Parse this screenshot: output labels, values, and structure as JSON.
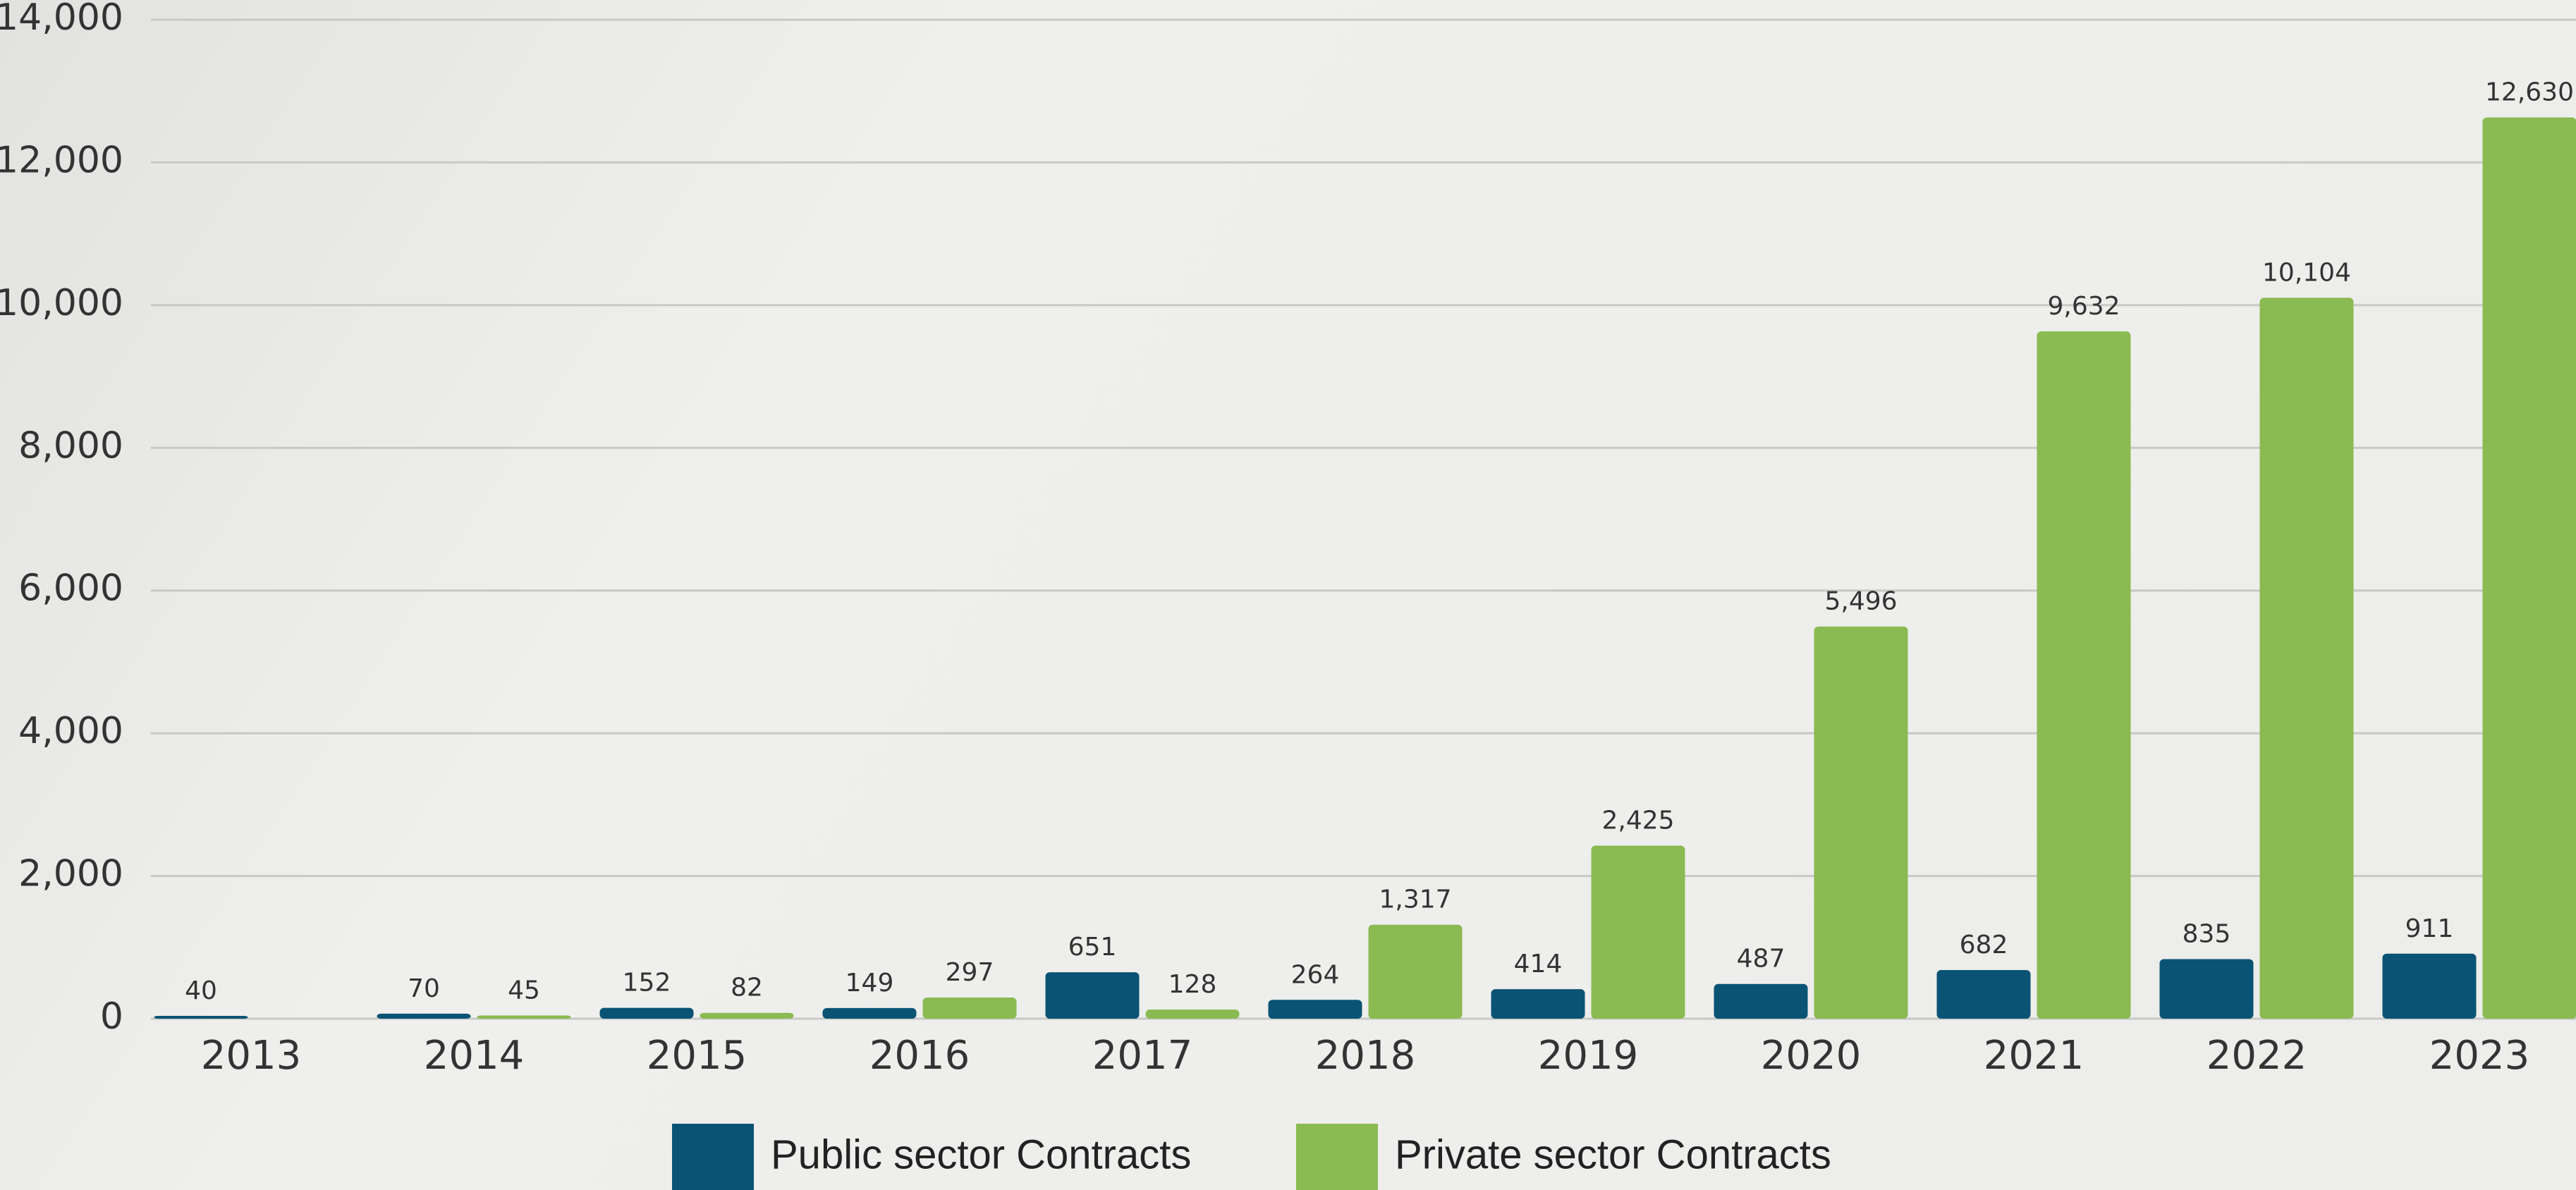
{
  "chart_data": {
    "type": "bar",
    "categories": [
      "2013",
      "2014",
      "2015",
      "2016",
      "2017",
      "2018",
      "2019",
      "2020",
      "2021",
      "2022",
      "2023"
    ],
    "series": [
      {
        "name": "Public sector Contracts",
        "color": "#0b5374",
        "values": [
          40,
          70,
          152,
          149,
          651,
          264,
          414,
          487,
          682,
          835,
          911
        ],
        "value_labels": [
          "40",
          "70",
          "152",
          "149",
          "651",
          "264",
          "414",
          "487",
          "682",
          "835",
          "911"
        ]
      },
      {
        "name": "Private sector Contracts",
        "color": "#8aba52",
        "values": [
          null,
          45,
          82,
          297,
          128,
          1317,
          2425,
          5496,
          9632,
          10104,
          12630
        ],
        "value_labels": [
          null,
          "45",
          "82",
          "297",
          "128",
          "1,317",
          "2,425",
          "5,496",
          "9,632",
          "10,104",
          "12,630"
        ]
      }
    ],
    "ylim": [
      0,
      14000
    ],
    "yticks": [
      0,
      {
        "value": 2000,
        "label": "2,000"
      },
      {
        "value": 4000,
        "label": "4,000"
      },
      {
        "value": 6000,
        "label": "6,000"
      },
      {
        "value": 8000,
        "label": "8,000"
      },
      {
        "value": 10000,
        "label": "10,000"
      },
      {
        "value": 12000,
        "label": "12,000"
      },
      {
        "value": 14000,
        "label": "14,000"
      }
    ],
    "grid": true,
    "legend": "bottom"
  }
}
